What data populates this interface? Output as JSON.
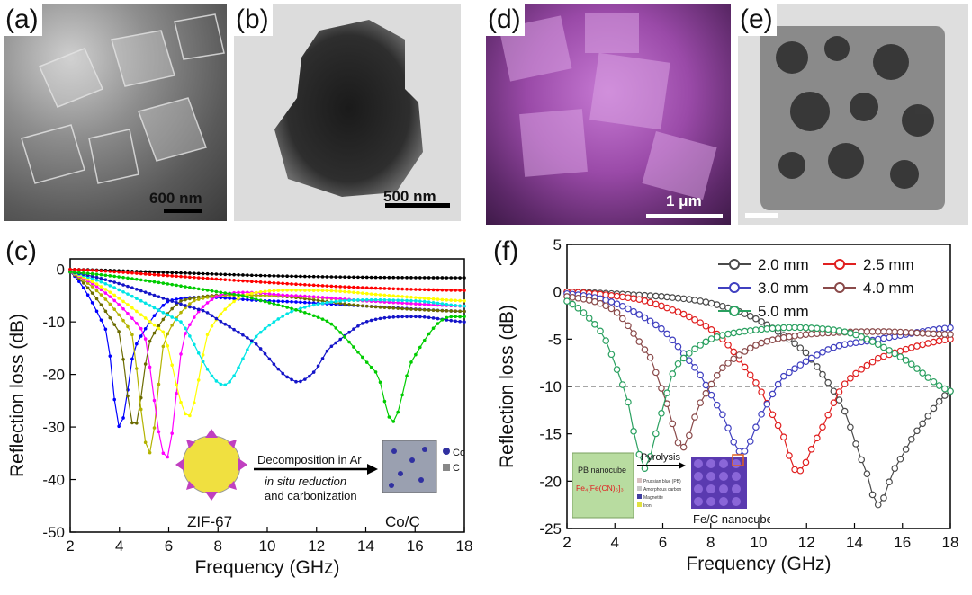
{
  "panels": {
    "a": {
      "label": "(a)",
      "scale": "600 nm"
    },
    "b": {
      "label": "(b)",
      "scale": "500 nm"
    },
    "c": {
      "label": "(c)"
    },
    "d": {
      "label": "(d)",
      "scale": "1 μm"
    },
    "e": {
      "label": "(e)"
    },
    "f": {
      "label": "(f)"
    }
  },
  "inset_c": {
    "left_label": "ZIF-67",
    "right_label": "Co/C",
    "arrow_top": "Decomposition in Ar",
    "arrow_bottom_1": "in situ reduction",
    "arrow_bottom_2": "and carbonization",
    "legend_co": "Co",
    "legend_c": "C"
  },
  "inset_f": {
    "box_title": "PB nanocube",
    "box_formula": "Fe₄[Fe(CN)₆]₃",
    "arrow_label": "Pyrolysis",
    "product_label": "Fe/C nanocubes",
    "legend_items": [
      "Prussian blue (PB)",
      "Amorphous carbon",
      "Magnetite",
      "Iron"
    ]
  },
  "colors": {
    "c_black": "#000000",
    "c_red": "#ff0000",
    "c_olive": "#6b6b00",
    "c_darkyellow": "#b3b300",
    "c_magenta": "#ff00ff",
    "c_yellow": "#ffff00",
    "c_cyan": "#00e5e5",
    "c_blue": "#1414c8",
    "c_green": "#00cc00",
    "f_black": "#4a4a4a",
    "f_red": "#e02020",
    "f_blue": "#4040c0",
    "f_brown": "#8a4a4a",
    "f_green": "#2aa060"
  },
  "chart_data": [
    {
      "type": "line",
      "panel": "c",
      "xlabel": "Frequency (GHz)",
      "ylabel": "Reflection loss (dB)",
      "xlim": [
        2,
        18
      ],
      "ylim": [
        -50,
        2
      ],
      "xticks": [
        2,
        4,
        6,
        8,
        10,
        12,
        14,
        16,
        18
      ],
      "yticks": [
        0,
        -10,
        -20,
        -30,
        -40,
        -50
      ],
      "xtick_labels": [
        "2",
        "4",
        "6",
        "8",
        "10",
        "12",
        "14",
        "16",
        "18"
      ],
      "ytick_labels": [
        "0",
        "-10",
        "-20",
        "-30",
        "-40",
        "-50"
      ],
      "grid": false,
      "legend": "none",
      "series": [
        {
          "color": "#000000",
          "x": [
            2,
            6,
            10,
            14,
            18
          ],
          "y": [
            0,
            -0.6,
            -1.2,
            -1.5,
            -1.6
          ]
        },
        {
          "color": "#ff0000",
          "x": [
            2,
            6,
            10,
            14,
            18
          ],
          "y": [
            0,
            -1.2,
            -2.5,
            -3.5,
            -4.0
          ]
        },
        {
          "color": "#0000ff",
          "x": [
            2,
            3.5,
            4.0,
            4.6,
            6,
            10,
            14,
            18
          ],
          "y": [
            -0.5,
            -12,
            -30,
            -15,
            -6,
            -6,
            -7,
            -8
          ]
        },
        {
          "color": "#6b6b00",
          "x": [
            2,
            4,
            4.6,
            5.2,
            6.5,
            10,
            14,
            18
          ],
          "y": [
            -0.5,
            -12,
            -30,
            -14,
            -6,
            -5,
            -7,
            -8
          ]
        },
        {
          "color": "#b3b300",
          "x": [
            2,
            4.5,
            5.2,
            5.8,
            7,
            10,
            14,
            18
          ],
          "y": [
            -0.5,
            -12,
            -35,
            -14,
            -6,
            -5,
            -6,
            -7
          ]
        },
        {
          "color": "#ff00ff",
          "x": [
            2,
            5,
            5.9,
            6.6,
            8,
            11,
            14,
            18
          ],
          "y": [
            -0.5,
            -12,
            -36,
            -13,
            -5,
            -5,
            -6,
            -7
          ]
        },
        {
          "color": "#ffff00",
          "x": [
            2,
            5.8,
            6.8,
            7.6,
            9,
            12,
            15,
            18
          ],
          "y": [
            -0.5,
            -12,
            -28,
            -12,
            -5,
            -4,
            -5,
            -6
          ]
        },
        {
          "color": "#00e5e5",
          "x": [
            2,
            6.5,
            8.2,
            9.5,
            11,
            13,
            16,
            18
          ],
          "y": [
            -0.5,
            -10,
            -22,
            -13,
            -8,
            -6,
            -6,
            -7
          ]
        },
        {
          "color": "#1414c8",
          "x": [
            2,
            7.5,
            9.5,
            11.0,
            11.8,
            12.5,
            14,
            16,
            18
          ],
          "y": [
            -0.5,
            -8,
            -14,
            -21,
            -20,
            -15,
            -10,
            -9,
            -10
          ]
        },
        {
          "color": "#00cc00",
          "x": [
            2,
            9,
            12.5,
            14.5,
            15.1,
            15.8,
            17,
            18
          ],
          "y": [
            -0.5,
            -5,
            -10,
            -20,
            -29,
            -18,
            -10,
            -9
          ]
        }
      ]
    },
    {
      "type": "line",
      "panel": "f",
      "xlabel": "Frequency (GHz)",
      "ylabel": "Reflection loss (dB)",
      "xlim": [
        2,
        18
      ],
      "ylim": [
        -25,
        5
      ],
      "xticks": [
        2,
        4,
        6,
        8,
        10,
        12,
        14,
        16,
        18
      ],
      "yticks": [
        5,
        0,
        -5,
        -10,
        -15,
        -20,
        -25
      ],
      "xtick_labels": [
        "2",
        "4",
        "6",
        "8",
        "10",
        "12",
        "14",
        "16",
        "18"
      ],
      "ytick_labels": [
        "5",
        "0",
        "-5",
        "-10",
        "-15",
        "-20",
        "-25"
      ],
      "grid": false,
      "legend": "top-right",
      "reference_line_y": -10,
      "series": [
        {
          "name": "2.0 mm",
          "color": "#4a4a4a",
          "x": [
            2,
            6,
            8,
            10,
            12,
            13.5,
            14.5,
            15.0,
            15.6,
            16.5,
            18
          ],
          "y": [
            0,
            -0.5,
            -1.2,
            -3.0,
            -6.5,
            -12,
            -19,
            -22.5,
            -19,
            -15,
            -10.5
          ]
        },
        {
          "name": "2.5 mm",
          "color": "#e02020",
          "x": [
            2,
            5,
            7,
            8.5,
            10,
            11,
            11.6,
            12.3,
            13.5,
            15,
            18
          ],
          "y": [
            0,
            -0.8,
            -2.5,
            -5,
            -10,
            -15,
            -19,
            -16,
            -10,
            -7,
            -5
          ]
        },
        {
          "name": "3.0 mm",
          "color": "#4040c0",
          "x": [
            2,
            4,
            6,
            7.5,
            8.5,
            9.3,
            10.1,
            11,
            13,
            15,
            18
          ],
          "y": [
            -0.2,
            -1.2,
            -4,
            -8.5,
            -13,
            -17,
            -13,
            -9,
            -6,
            -5,
            -3.8
          ]
        },
        {
          "name": "4.0 mm",
          "color": "#8a4a4a",
          "x": [
            2,
            4,
            5.5,
            6.2,
            6.8,
            7.5,
            8.5,
            10,
            12,
            15,
            18
          ],
          "y": [
            -0.5,
            -2,
            -7,
            -12,
            -16.5,
            -12,
            -8,
            -5.5,
            -4.5,
            -4.2,
            -4.5
          ]
        },
        {
          "name": "5.0 mm",
          "color": "#2aa060",
          "x": [
            2,
            3.5,
            4.5,
            5.0,
            5.3,
            5.8,
            6.5,
            8,
            10,
            12,
            14,
            16,
            18
          ],
          "y": [
            -1,
            -4.5,
            -11,
            -17,
            -18.5,
            -14,
            -8,
            -5,
            -4,
            -3.8,
            -4.5,
            -7,
            -10.5
          ]
        }
      ]
    }
  ]
}
